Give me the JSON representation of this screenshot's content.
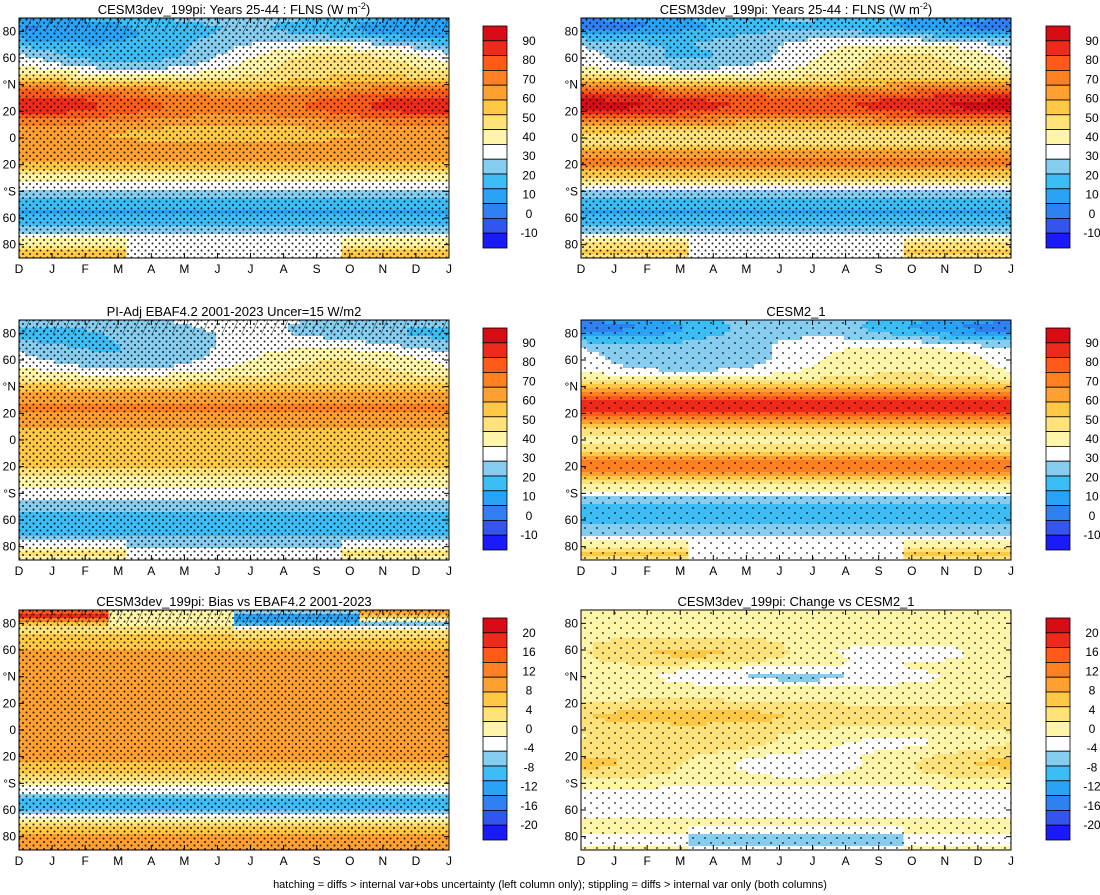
{
  "footnote": "hatching = diffs > internal var+obs uncertainty (left column only); stippling = diffs > internal var only (both columns)",
  "month_labels": [
    "D",
    "J",
    "F",
    "M",
    "A",
    "M",
    "J",
    "J",
    "A",
    "S",
    "O",
    "N",
    "D",
    "J"
  ],
  "lat_labels": [
    "80",
    "60",
    "°N",
    "20",
    "0",
    "20",
    "°S",
    "60",
    "80"
  ],
  "colors": {
    "abs": [
      "#1a1aff",
      "#3355ee",
      "#2f80f0",
      "#2aa2f5",
      "#3cbdf5",
      "#86cdef",
      "#ffffff",
      "#fff5a8",
      "#ffe27a",
      "#ffc845",
      "#ffa030",
      "#ff8020",
      "#ff5a1a",
      "#ee2a1a",
      "#d80c14"
    ],
    "diff": [
      "#1a1aff",
      "#3355ee",
      "#2f80f0",
      "#2aa2f5",
      "#3cbdf5",
      "#86cdef",
      "#ffffff",
      "#fff5a8",
      "#ffe27a",
      "#ffc845",
      "#ffa030",
      "#ff8020",
      "#ff5a1a",
      "#ee2a1a",
      "#d80c14"
    ]
  },
  "chart_data": [
    {
      "type": "heatmap",
      "title_main": "CESM3dev_199pi: Years 25-44 : FLNS (W m",
      "title_sup": "-2",
      "title_tail": ")",
      "scale": "abs",
      "colorbar_ticks": [
        "90",
        "80",
        "70",
        "60",
        "50",
        "40",
        "30",
        "20",
        "10",
        "0",
        "-10"
      ],
      "x": "months Dec-Jan",
      "y": "latitude -90..90",
      "stipple": "most",
      "hatch": "north-edge",
      "features": [
        {
          "lat": 25,
          "value": 78
        },
        {
          "lat": -15,
          "value": 62
        },
        {
          "lat": -55,
          "value": 20
        },
        {
          "lat": 80,
          "value": 20
        },
        {
          "lat": -85,
          "value": 58
        }
      ]
    },
    {
      "type": "heatmap",
      "title_main": "CESM3dev_199pi: Years 25-44 : FLNS (W m",
      "title_sup": "-2",
      "title_tail": ")",
      "scale": "abs",
      "colorbar_ticks": [
        "90",
        "80",
        "70",
        "60",
        "50",
        "40",
        "30",
        "20",
        "10",
        "0",
        "-10"
      ],
      "stipple": "most",
      "features": [
        {
          "lat": 25,
          "value": 82
        },
        {
          "lat": -20,
          "value": 66
        },
        {
          "lat": -55,
          "value": 15
        },
        {
          "lat": 82,
          "value": 18
        },
        {
          "lat": -85,
          "value": 55
        }
      ]
    },
    {
      "type": "heatmap",
      "title_main": "PI-Adj EBAF4.2 2001-2023 Uncer=15 W/m2",
      "title_sup": "",
      "title_tail": "",
      "scale": "abs",
      "colorbar_ticks": [
        "90",
        "80",
        "70",
        "60",
        "50",
        "40",
        "30",
        "20",
        "10",
        "0",
        "-10"
      ],
      "stipple": "most",
      "hatch": "north-edge",
      "features": [
        {
          "lat": 25,
          "value": 68
        },
        {
          "lat": -15,
          "value": 55
        },
        {
          "lat": -60,
          "value": 22
        },
        {
          "lat": 82,
          "value": 28
        },
        {
          "lat": -85,
          "value": 45
        }
      ]
    },
    {
      "type": "heatmap",
      "title_main": "CESM2_1",
      "title_sup": "",
      "title_tail": "",
      "scale": "abs",
      "colorbar_ticks": [
        "90",
        "80",
        "70",
        "60",
        "50",
        "40",
        "30",
        "20",
        "10",
        "0",
        "-10"
      ],
      "stipple": "some",
      "features": [
        {
          "lat": 25,
          "value": 82
        },
        {
          "lat": -20,
          "value": 70
        },
        {
          "lat": -55,
          "value": 18
        },
        {
          "lat": 82,
          "value": 18
        },
        {
          "lat": -85,
          "value": 55
        }
      ]
    },
    {
      "type": "heatmap",
      "title_main": "CESM3dev_199pi: Bias vs EBAF4.2 2001-2023",
      "title_sup": "",
      "title_tail": "",
      "scale": "diff",
      "colorbar_ticks": [
        "20",
        "16",
        "12",
        "8",
        "4",
        "0",
        "-4",
        "-8",
        "-12",
        "-16",
        "-20"
      ],
      "stipple": "most",
      "hatch": "north-edge",
      "features": [
        {
          "lat": 25,
          "value": 8
        },
        {
          "lat": -15,
          "value": 7
        },
        {
          "lat": -55,
          "value": -10
        },
        {
          "lat": 85,
          "value": -14
        },
        {
          "lat": -85,
          "value": 8
        }
      ]
    },
    {
      "type": "heatmap",
      "title_main": "CESM3dev_199pi: Change vs CESM2_1",
      "title_sup": "",
      "title_tail": "",
      "scale": "diff",
      "colorbar_ticks": [
        "20",
        "16",
        "12",
        "8",
        "4",
        "0",
        "-4",
        "-8",
        "-12",
        "-16",
        "-20"
      ],
      "stipple": "some",
      "features": [
        {
          "lat": 40,
          "value": -6
        },
        {
          "lat": 10,
          "value": 5
        },
        {
          "lat": -55,
          "value": -6
        },
        {
          "lat": -80,
          "value": -9
        },
        {
          "lat": 80,
          "value": 4
        }
      ]
    }
  ]
}
